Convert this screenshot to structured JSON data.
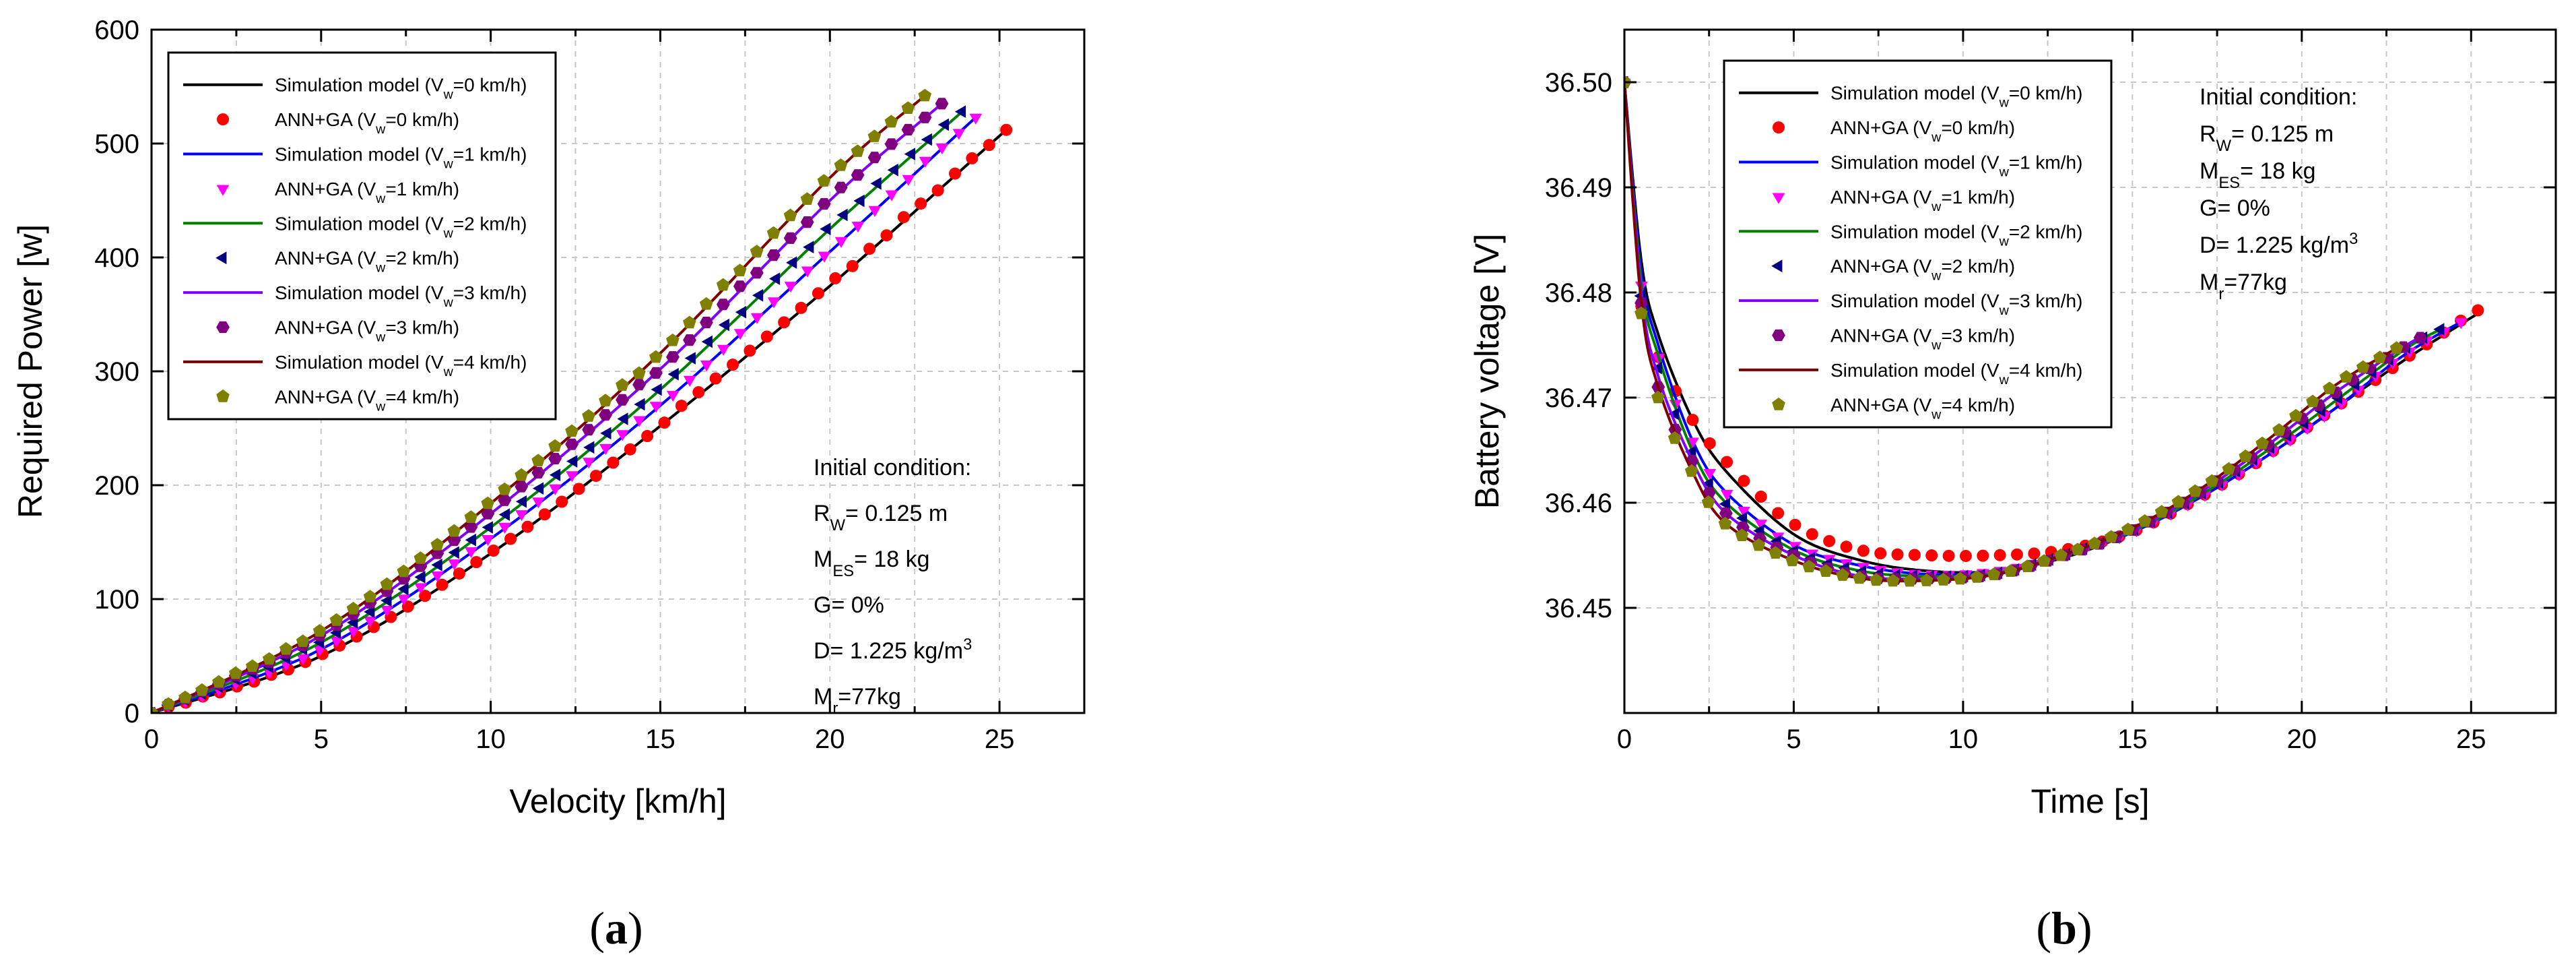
{
  "chart_data": [
    {
      "type": "line",
      "panel_label": {
        "open": "(",
        "letter": "a",
        "close": ")"
      },
      "xlabel": "Velocity [km/h]",
      "ylabel": "Required Power [w]",
      "xlim": [
        0,
        27.5
      ],
      "ylim": [
        0,
        600
      ],
      "xticks": [
        "0",
        "5",
        "10",
        "15",
        "20",
        "25"
      ],
      "yticks": [
        "0",
        "100",
        "200",
        "300",
        "400",
        "500",
        "600"
      ],
      "grid": true,
      "legend_position": "top-left",
      "series": [
        {
          "name_main": "Simulation model (V",
          "name_sub": "w",
          "name_tail": "=0 km/h)",
          "kind": "line",
          "color": "#000000",
          "x": [
            0,
            5,
            10,
            15,
            20,
            25.2
          ],
          "y": [
            0,
            50,
            140,
            252,
            375,
            512
          ]
        },
        {
          "name_main": "ANN+GA (V",
          "name_sub": "w",
          "name_tail": "=0 km/h)",
          "kind": "marker",
          "marker": "circle",
          "color": "#ff0000",
          "x": [
            0,
            5,
            10,
            15,
            20,
            25.2
          ],
          "y": [
            0,
            50,
            140,
            252,
            375,
            512
          ]
        },
        {
          "name_main": "Simulation model (V",
          "name_sub": "w",
          "name_tail": "=1 km/h)",
          "kind": "line",
          "color": "#0000ff",
          "x": [
            0,
            5,
            10,
            15,
            20,
            24.3
          ],
          "y": [
            0,
            56,
            153,
            270,
            405,
            523
          ]
        },
        {
          "name_main": "ANN+GA (V",
          "name_sub": "w",
          "name_tail": "=1 km/h)",
          "kind": "marker",
          "marker": "triangle-down",
          "color": "#ff00ff",
          "x": [
            0,
            5,
            10,
            15,
            20,
            24.3
          ],
          "y": [
            0,
            56,
            153,
            270,
            405,
            523
          ]
        },
        {
          "name_main": "Simulation model (V",
          "name_sub": "w",
          "name_tail": "=2 km/h)",
          "kind": "line",
          "color": "#008000",
          "x": [
            0,
            5,
            10,
            15,
            20,
            23.9
          ],
          "y": [
            0,
            62,
            163,
            284,
            425,
            528
          ]
        },
        {
          "name_main": "ANN+GA (V",
          "name_sub": "w",
          "name_tail": "=2 km/h)",
          "kind": "marker",
          "marker": "triangle-left",
          "color": "#000080",
          "x": [
            0,
            5,
            10,
            15,
            20,
            23.9
          ],
          "y": [
            0,
            62,
            163,
            284,
            425,
            528
          ]
        },
        {
          "name_main": "Simulation model (V",
          "name_sub": "w",
          "name_tail": "=3 km/h)",
          "kind": "line",
          "color": "#8000ff",
          "x": [
            0,
            5,
            10,
            15,
            20,
            23.3
          ],
          "y": [
            0,
            68,
            175,
            302,
            450,
            535
          ]
        },
        {
          "name_main": "ANN+GA (V",
          "name_sub": "w",
          "name_tail": "=3 km/h)",
          "kind": "marker",
          "marker": "hexagon",
          "color": "#800080",
          "x": [
            0,
            5,
            10,
            15,
            20,
            23.3
          ],
          "y": [
            0,
            68,
            175,
            302,
            450,
            535
          ]
        },
        {
          "name_main": "Simulation model (V",
          "name_sub": "w",
          "name_tail": "=4 km/h)",
          "kind": "line",
          "color": "#800000",
          "x": [
            0,
            5,
            10,
            15,
            20,
            22.8
          ],
          "y": [
            0,
            72,
            184,
            316,
            470,
            542
          ]
        },
        {
          "name_main": "ANN+GA (V",
          "name_sub": "w",
          "name_tail": "=4 km/h)",
          "kind": "marker",
          "marker": "pentagon",
          "color": "#808000",
          "x": [
            0,
            5,
            10,
            15,
            20,
            22.8
          ],
          "y": [
            0,
            72,
            184,
            316,
            470,
            542
          ]
        }
      ],
      "annotation": [
        {
          "main": "Initial condition:",
          "sub": "",
          "tail": "",
          "sup": ""
        },
        {
          "main": "R",
          "sub": "W",
          "tail": "= 0.125 m",
          "sup": ""
        },
        {
          "main": "M",
          "sub": "ES",
          "tail": "= 18 kg",
          "sup": ""
        },
        {
          "main": "G= 0%",
          "sub": "",
          "tail": "",
          "sup": ""
        },
        {
          "main": "D= 1.225 kg/m",
          "sub": "",
          "tail": "",
          "sup": "3"
        },
        {
          "main": "M",
          "sub": "r",
          "tail": "=77kg",
          "sup": ""
        }
      ]
    },
    {
      "type": "line",
      "panel_label": {
        "open": "(",
        "letter": "b",
        "close": ")"
      },
      "xlabel": "Time [s]",
      "ylabel": "Battery voltage [V]",
      "xlim": [
        0,
        27.5
      ],
      "ylim": [
        36.44,
        36.505
      ],
      "xticks": [
        "0",
        "5",
        "10",
        "15",
        "20",
        "25"
      ],
      "yticks": [
        "36.45",
        "36.46",
        "36.47",
        "36.48",
        "36.49",
        "36.50"
      ],
      "grid": true,
      "legend_position": "top-left",
      "series": [
        {
          "name_main": "Simulation model (V",
          "name_sub": "w",
          "name_tail": "=0 km/h)",
          "kind": "line",
          "color": "#000000",
          "x": [
            0,
            0.5,
            1,
            2,
            3,
            5,
            7,
            9,
            11,
            13,
            15,
            17,
            19,
            21,
            23,
            25.2
          ],
          "y": [
            36.5,
            36.483,
            36.476,
            36.468,
            36.463,
            36.457,
            36.4545,
            36.4535,
            36.4535,
            36.4548,
            36.4572,
            36.4605,
            36.4645,
            36.469,
            36.4735,
            36.478
          ]
        },
        {
          "name_main": "ANN+GA (V",
          "name_sub": "w",
          "name_tail": "=0 km/h)",
          "kind": "marker",
          "marker": "circle",
          "color": "#ff0000",
          "x": [
            0,
            0.5,
            1,
            2,
            3,
            5,
            7,
            9,
            11,
            13,
            15,
            17,
            19,
            21,
            23,
            25.2
          ],
          "y": [
            36.5,
            36.479,
            36.474,
            36.468,
            36.464,
            36.458,
            36.4555,
            36.455,
            36.455,
            36.4555,
            36.4572,
            36.4605,
            36.4645,
            36.469,
            36.4735,
            36.4783
          ]
        },
        {
          "name_main": "Simulation model (V",
          "name_sub": "w",
          "name_tail": "=1 km/h)",
          "kind": "line",
          "color": "#0000ff",
          "x": [
            0,
            0.5,
            1,
            2,
            3,
            5,
            7,
            9,
            11,
            13,
            15,
            17,
            19,
            21,
            23,
            24.7
          ],
          "y": [
            36.5,
            36.482,
            36.475,
            36.466,
            36.461,
            36.456,
            36.454,
            36.4532,
            36.4535,
            36.455,
            36.4572,
            36.4605,
            36.4645,
            36.469,
            36.474,
            36.4772
          ]
        },
        {
          "name_main": "ANN+GA (V",
          "name_sub": "w",
          "name_tail": "=1 km/h)",
          "kind": "marker",
          "marker": "triangle-down",
          "color": "#ff00ff",
          "x": [
            0,
            0.5,
            1,
            2,
            3,
            5,
            7,
            9,
            11,
            13,
            15,
            17,
            19,
            21,
            23,
            24.7
          ],
          "y": [
            36.5,
            36.481,
            36.474,
            36.466,
            36.461,
            36.456,
            36.454,
            36.4532,
            36.4535,
            36.455,
            36.4572,
            36.4605,
            36.4645,
            36.469,
            36.474,
            36.4772
          ]
        },
        {
          "name_main": "Simulation model (V",
          "name_sub": "w",
          "name_tail": "=2 km/h)",
          "kind": "line",
          "color": "#008000",
          "x": [
            0,
            0.5,
            1,
            2,
            3,
            5,
            7,
            9,
            11,
            13,
            15,
            17,
            19,
            21,
            23,
            24.1
          ],
          "y": [
            36.5,
            36.481,
            36.474,
            36.465,
            36.46,
            36.4555,
            36.4535,
            36.453,
            36.4533,
            36.455,
            36.4573,
            36.4607,
            36.465,
            36.4697,
            36.4745,
            36.4765
          ]
        },
        {
          "name_main": "ANN+GA (V",
          "name_sub": "w",
          "name_tail": "=2 km/h)",
          "kind": "marker",
          "marker": "triangle-left",
          "color": "#000080",
          "x": [
            0,
            0.5,
            1,
            2,
            3,
            5,
            7,
            9,
            11,
            13,
            15,
            17,
            19,
            21,
            23,
            24.1
          ],
          "y": [
            36.5,
            36.48,
            36.473,
            36.465,
            36.46,
            36.4555,
            36.4535,
            36.453,
            36.4533,
            36.455,
            36.4573,
            36.4607,
            36.465,
            36.4697,
            36.4745,
            36.4765
          ]
        },
        {
          "name_main": "Simulation model (V",
          "name_sub": "w",
          "name_tail": "=3 km/h)",
          "kind": "line",
          "color": "#8000ff",
          "x": [
            0,
            0.5,
            1,
            2,
            3,
            5,
            7,
            9,
            11,
            13,
            15,
            17,
            19,
            21,
            23,
            23.5
          ],
          "y": [
            36.5,
            36.48,
            36.472,
            36.464,
            36.459,
            36.455,
            36.453,
            36.4528,
            36.4532,
            36.455,
            36.4574,
            36.461,
            36.4655,
            36.4705,
            36.4748,
            36.4757
          ]
        },
        {
          "name_main": "ANN+GA (V",
          "name_sub": "w",
          "name_tail": "=3 km/h)",
          "kind": "marker",
          "marker": "hexagon",
          "color": "#800080",
          "x": [
            0,
            0.5,
            1,
            2,
            3,
            5,
            7,
            9,
            11,
            13,
            15,
            17,
            19,
            21,
            23,
            23.5
          ],
          "y": [
            36.5,
            36.479,
            36.471,
            36.464,
            36.459,
            36.455,
            36.453,
            36.4528,
            36.4532,
            36.455,
            36.4574,
            36.461,
            36.4655,
            36.4705,
            36.4748,
            36.4757
          ]
        },
        {
          "name_main": "Simulation model (V",
          "name_sub": "w",
          "name_tail": "=4 km/h)",
          "kind": "line",
          "color": "#800000",
          "x": [
            0,
            0.5,
            1,
            2,
            3,
            5,
            7,
            9,
            11,
            13,
            15,
            17,
            19,
            21,
            22.8
          ],
          "y": [
            36.5,
            36.479,
            36.471,
            36.463,
            36.458,
            36.4545,
            36.4528,
            36.4526,
            36.4532,
            36.4551,
            36.4576,
            36.4613,
            36.466,
            36.4712,
            36.4747
          ]
        },
        {
          "name_main": "ANN+GA (V",
          "name_sub": "w",
          "name_tail": "=4 km/h)",
          "kind": "marker",
          "marker": "pentagon",
          "color": "#808000",
          "x": [
            0,
            0.5,
            1,
            2,
            3,
            5,
            7,
            9,
            11,
            13,
            15,
            17,
            19,
            21,
            22.8
          ],
          "y": [
            36.5,
            36.478,
            36.47,
            36.463,
            36.458,
            36.4545,
            36.4528,
            36.4526,
            36.4532,
            36.4551,
            36.4576,
            36.4613,
            36.466,
            36.4712,
            36.4747
          ]
        }
      ],
      "annotation": [
        {
          "main": "Initial condition:",
          "sub": "",
          "tail": "",
          "sup": ""
        },
        {
          "main": "R",
          "sub": "W",
          "tail": "= 0.125 m",
          "sup": ""
        },
        {
          "main": "M",
          "sub": "ES",
          "tail": "= 18 kg",
          "sup": ""
        },
        {
          "main": "G= 0%",
          "sub": "",
          "tail": "",
          "sup": ""
        },
        {
          "main": "D= 1.225 kg/m",
          "sub": "",
          "tail": "",
          "sup": "3"
        },
        {
          "main": "M",
          "sub": "r",
          "tail": "=77kg",
          "sup": ""
        }
      ]
    }
  ]
}
